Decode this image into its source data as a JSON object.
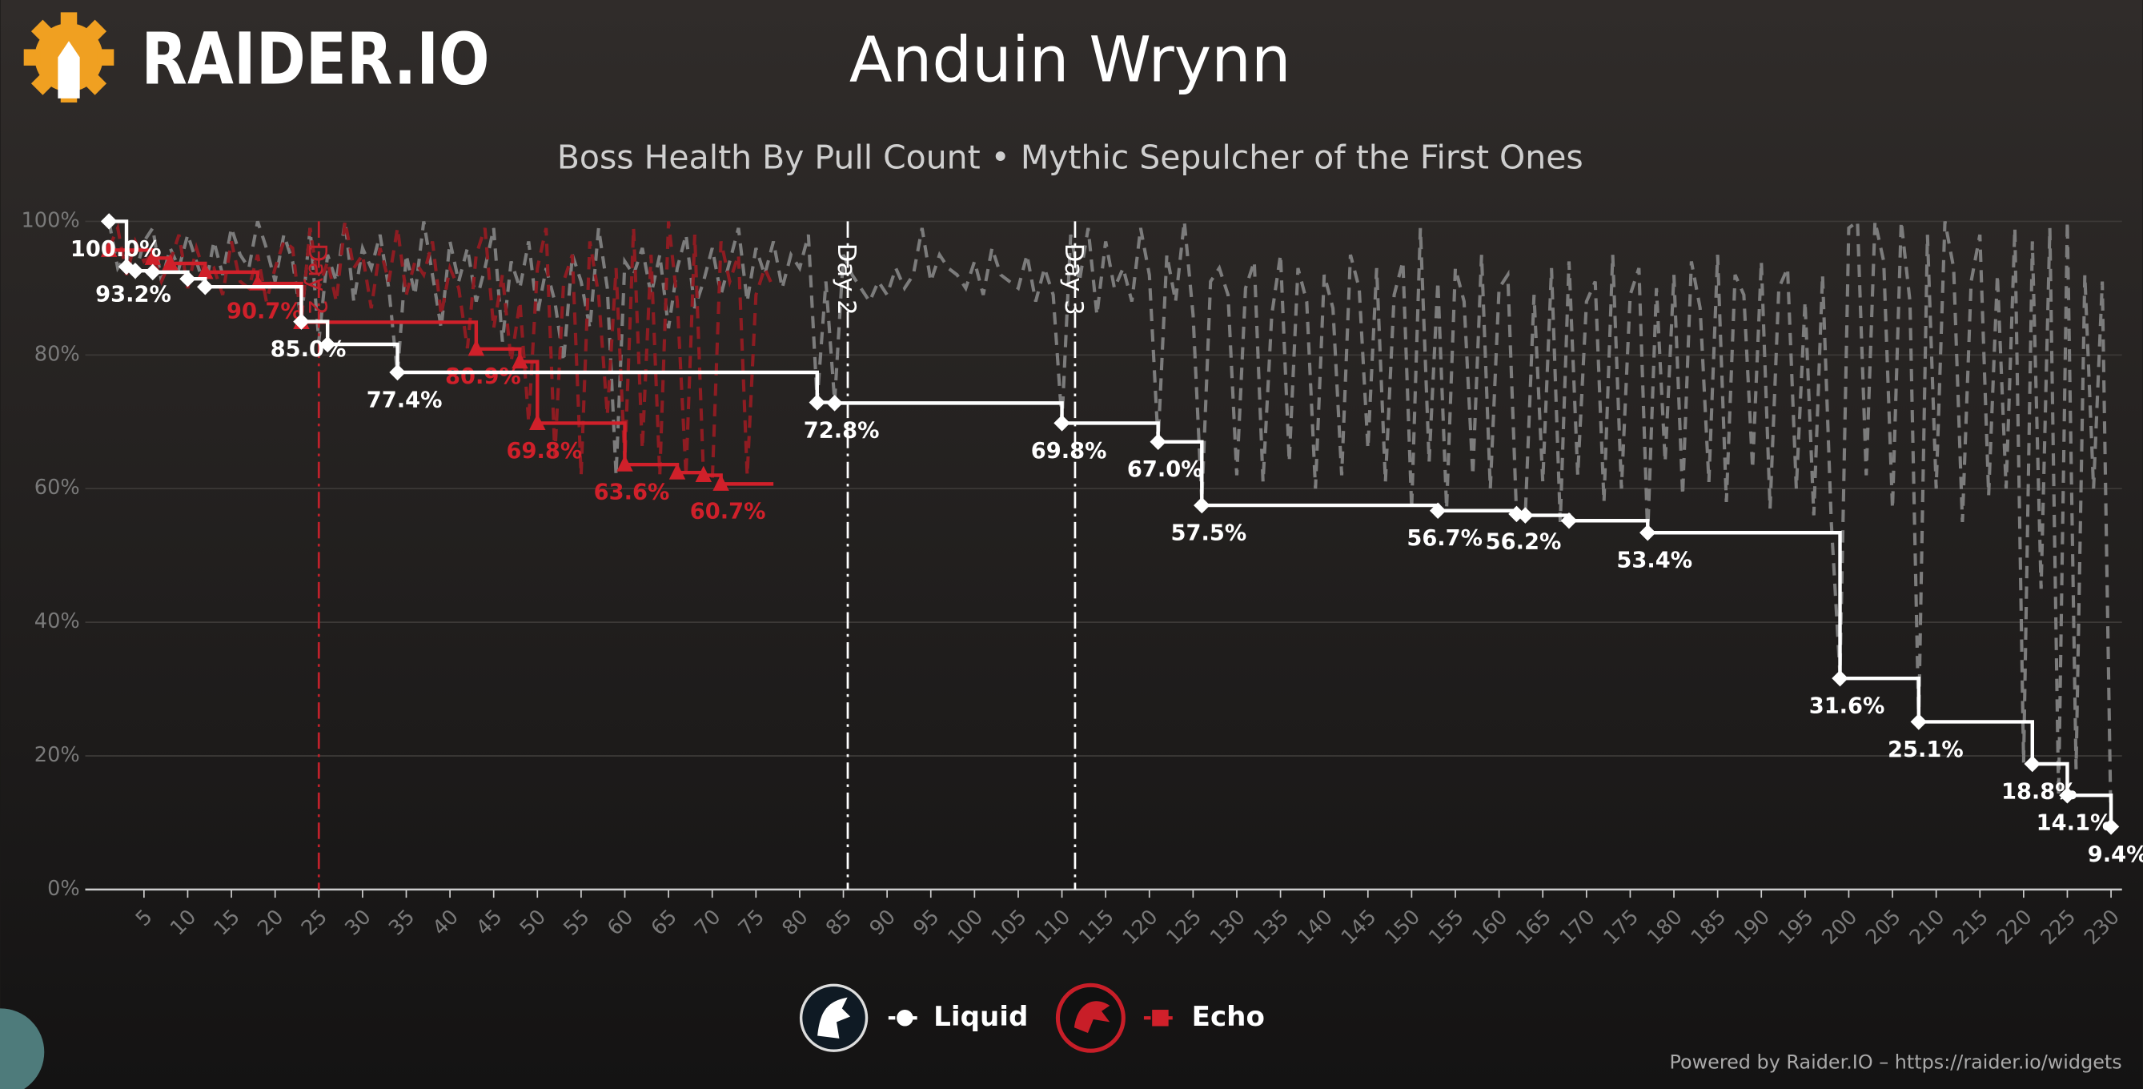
{
  "chart_data": {
    "type": "line",
    "logo_text": "RAIDER.IO",
    "title": "Anduin Wrynn",
    "subtitle": "Boss Health By Pull Count • Mythic Sepulcher of the First Ones",
    "footer": "Powered by Raider.IO – https://raider.io/widgets",
    "xlim": [
      0,
      230
    ],
    "xticks": [
      5,
      10,
      15,
      20,
      25,
      30,
      35,
      40,
      45,
      50,
      55,
      60,
      65,
      70,
      75,
      80,
      85,
      90,
      95,
      100,
      105,
      110,
      115,
      120,
      125,
      130,
      135,
      140,
      145,
      150,
      155,
      160,
      165,
      170,
      175,
      180,
      185,
      190,
      195,
      200,
      205,
      210,
      215,
      220,
      225,
      230
    ],
    "ylim": [
      0,
      100
    ],
    "yticks": [
      {
        "value": 0,
        "label": "0%"
      },
      {
        "value": 20,
        "label": "20%"
      },
      {
        "value": 40,
        "label": "40%"
      },
      {
        "value": 60,
        "label": "60%"
      },
      {
        "value": 80,
        "label": "80%"
      },
      {
        "value": 100,
        "label": "100%"
      }
    ],
    "grid": true,
    "markers": [
      {
        "x": 25,
        "label": "Day 2",
        "color": "#c0212b"
      },
      {
        "x": 85.5,
        "label": "Day 2",
        "color": "#ffffff"
      },
      {
        "x": 111.5,
        "label": "Day 3",
        "color": "#ffffff"
      }
    ],
    "series": [
      {
        "name": "Liquid",
        "color": "#ffffff",
        "marker": "diamond",
        "attempt_color": "#7c7c7c",
        "x": [
          1,
          3,
          4,
          6,
          10,
          12,
          23,
          26,
          34,
          82,
          84,
          110,
          121,
          126,
          153,
          162,
          163,
          168,
          177,
          199,
          208,
          221,
          225,
          230
        ],
        "values": [
          100,
          93.2,
          92.6,
          92.4,
          91.4,
          90.2,
          85.0,
          81.6,
          77.4,
          72.9,
          72.8,
          69.8,
          67.0,
          57.5,
          56.7,
          56.2,
          56.0,
          55.2,
          53.4,
          31.6,
          25.1,
          18.8,
          14.1,
          9.4
        ],
        "value_labels": [
          "100.0%",
          "93.2%",
          null,
          null,
          null,
          null,
          "85.0%",
          null,
          "77.4%",
          null,
          "72.8%",
          "69.8%",
          "67.0%",
          "57.5%",
          "56.7%",
          "56.2%",
          null,
          null,
          "53.4%",
          "31.6%",
          "25.1%",
          "18.8%",
          "14.1%",
          "9.4%"
        ],
        "attempts_x": [
          1,
          2,
          3,
          4,
          5,
          6,
          7,
          8,
          9,
          10,
          11,
          12,
          13,
          14,
          15,
          16,
          17,
          18,
          19,
          20,
          21,
          22,
          23,
          24,
          25,
          26,
          27,
          28,
          29,
          30,
          31,
          32,
          33,
          34,
          35,
          36,
          37,
          38,
          39,
          40,
          41,
          42,
          43,
          44,
          45,
          46,
          47,
          48,
          49,
          50,
          51,
          52,
          53,
          54,
          55,
          56,
          57,
          58,
          59,
          60,
          61,
          62,
          63,
          64,
          65,
          66,
          67,
          68,
          69,
          70,
          71,
          72,
          73,
          74,
          75,
          76,
          77,
          78,
          79,
          80,
          81,
          82,
          83,
          84,
          85,
          86,
          87,
          88,
          89,
          90,
          91,
          92,
          93,
          94,
          95,
          96,
          97,
          98,
          99,
          100,
          101,
          102,
          103,
          104,
          105,
          106,
          107,
          108,
          109,
          110,
          111,
          112,
          113,
          114,
          115,
          116,
          117,
          118,
          119,
          120,
          121,
          122,
          123,
          124,
          125,
          126,
          127,
          128,
          129,
          130,
          131,
          132,
          133,
          134,
          135,
          136,
          137,
          138,
          139,
          140,
          141,
          142,
          143,
          144,
          145,
          146,
          147,
          148,
          149,
          150,
          151,
          152,
          153,
          154,
          155,
          156,
          157,
          158,
          159,
          160,
          161,
          162,
          163,
          164,
          165,
          166,
          167,
          168,
          169,
          170,
          171,
          172,
          173,
          174,
          175,
          176,
          177,
          178,
          179,
          180,
          181,
          182,
          183,
          184,
          185,
          186,
          187,
          188,
          189,
          190,
          191,
          192,
          193,
          194,
          195,
          196,
          197,
          198,
          199,
          200,
          201,
          202,
          203,
          204,
          205,
          206,
          207,
          208,
          209,
          210,
          211,
          212,
          213,
          214,
          215,
          216,
          217,
          218,
          219,
          220,
          221,
          222,
          223,
          224,
          225,
          226,
          227,
          228,
          229,
          230
        ],
        "attempts": [
          100,
          93,
          95,
          92,
          97,
          99,
          91,
          96,
          93,
          98,
          94,
          90,
          97,
          92,
          99,
          95,
          93,
          100,
          96,
          91,
          98,
          94,
          85,
          99,
          82,
          95,
          91,
          100,
          88,
          96,
          93,
          98,
          90,
          77,
          95,
          89,
          100,
          92,
          84,
          97,
          91,
          96,
          88,
          93,
          99,
          82,
          94,
          90,
          97,
          86,
          93,
          88,
          79,
          95,
          91,
          84,
          99,
          90,
          62,
          94,
          92,
          96,
          89,
          95,
          84,
          93,
          98,
          87,
          91,
          96,
          89,
          94,
          99,
          88,
          96,
          92,
          97,
          90,
          95,
          93,
          98,
          73,
          91,
          73,
          95,
          92,
          90,
          88,
          91,
          89,
          93,
          90,
          92,
          99,
          91,
          95,
          93,
          92,
          90,
          94,
          89,
          96,
          92,
          91,
          90,
          95,
          88,
          93,
          89,
          70,
          98,
          91,
          99,
          86,
          97,
          90,
          93,
          88,
          99,
          92,
          67,
          95,
          88,
          100,
          86,
          58,
          91,
          93,
          89,
          62,
          90,
          94,
          61,
          86,
          95,
          64,
          93,
          88,
          60,
          92,
          87,
          62,
          95,
          90,
          66,
          93,
          61,
          89,
          94,
          57,
          99,
          64,
          91,
          57,
          93,
          88,
          62,
          95,
          60,
          90,
          92,
          56,
          56,
          89,
          61,
          93,
          55,
          94,
          62,
          88,
          91,
          58,
          95,
          60,
          89,
          93,
          53,
          90,
          64,
          92,
          59,
          94,
          87,
          61,
          95,
          58,
          92,
          89,
          63,
          94,
          57,
          90,
          93,
          60,
          88,
          56,
          92,
          55,
          32,
          99,
          100,
          62,
          100,
          94,
          57,
          100,
          88,
          25,
          98,
          60,
          100,
          93,
          55,
          91,
          98,
          59,
          92,
          60,
          99,
          19,
          97,
          45,
          99,
          14,
          100,
          18,
          92,
          60,
          91,
          9
        ]
      },
      {
        "name": "Echo",
        "color": "#d0202a",
        "marker": "triangle",
        "attempt_color": "#8e1c22",
        "x": [
          1,
          6,
          8,
          12,
          18,
          23,
          43,
          48,
          50,
          60,
          66,
          69,
          71
        ],
        "values": [
          95.7,
          94.5,
          93.7,
          92.4,
          90.7,
          84.9,
          80.9,
          79.0,
          69.8,
          63.6,
          62.4,
          62.0,
          60.7
        ],
        "value_labels": [
          null,
          null,
          null,
          null,
          "90.7%",
          null,
          "80.9%",
          null,
          "69.8%",
          "63.6%",
          null,
          null,
          "60.7%"
        ],
        "attempts_x": [
          1,
          2,
          3,
          4,
          5,
          6,
          7,
          8,
          9,
          10,
          11,
          12,
          13,
          14,
          15,
          16,
          17,
          18,
          19,
          20,
          21,
          22,
          23,
          24,
          25,
          26,
          27,
          28,
          29,
          30,
          31,
          32,
          33,
          34,
          35,
          36,
          37,
          38,
          39,
          40,
          41,
          42,
          43,
          44,
          45,
          46,
          47,
          48,
          49,
          50,
          51,
          52,
          53,
          54,
          55,
          56,
          57,
          58,
          59,
          60,
          61,
          62,
          63,
          64,
          65,
          66,
          67,
          68,
          69,
          70,
          71,
          72,
          73,
          74,
          75,
          76,
          77
        ],
        "attempts": [
          96,
          99,
          92,
          97,
          94,
          95,
          91,
          94,
          98,
          90,
          96,
          92,
          93,
          89,
          97,
          91,
          90,
          95,
          88,
          93,
          97,
          96,
          85,
          99,
          90,
          94,
          88,
          100,
          93,
          95,
          87,
          96,
          91,
          99,
          89,
          94,
          92,
          97,
          86,
          93,
          90,
          81,
          95,
          99,
          84,
          92,
          79,
          88,
          70,
          93,
          99,
          65,
          91,
          95,
          62,
          97,
          89,
          71,
          93,
          64,
          99,
          66,
          95,
          62,
          100,
          88,
          62,
          98,
          62,
          61,
          97,
          91,
          95,
          62,
          89,
          93,
          90
        ]
      }
    ]
  }
}
